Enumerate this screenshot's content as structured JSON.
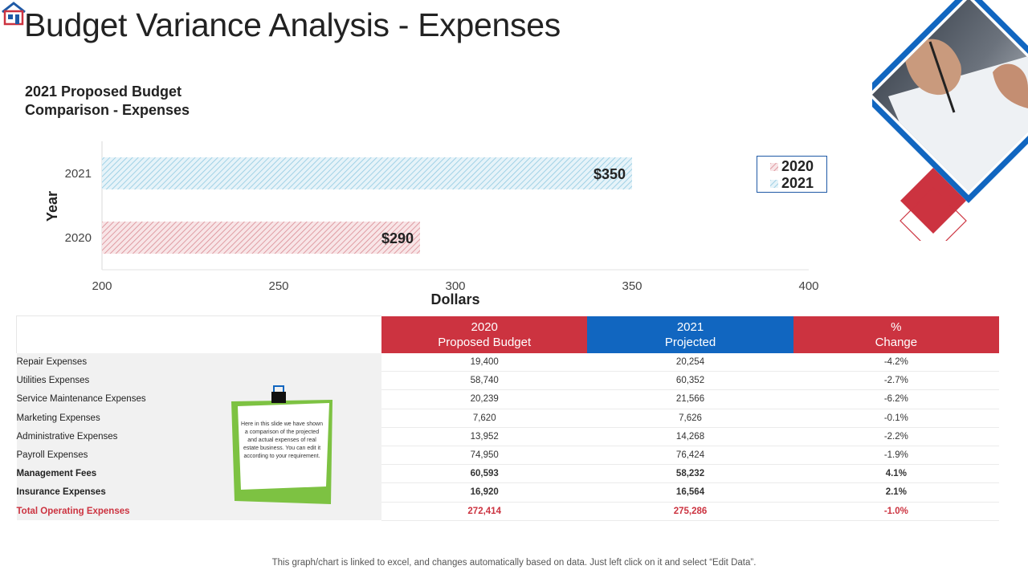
{
  "page": {
    "title": "Budget Variance Analysis - Expenses",
    "footer": "This graph/chart is linked to excel, and changes automatically based on data. Just left click on it and select “Edit Data”.",
    "note_text": "Here in this slide we have shown a comparison of the projected and actual expenses of real estate business. You can edit it according to your requirement.",
    "logo_icon": "house-logo-icon",
    "photo_icon": "hand-writing-photo"
  },
  "chart_data": {
    "type": "bar",
    "orientation": "horizontal",
    "title": "2021 Proposed Budget Comparison - Expenses",
    "title_lines": [
      "2021 Proposed Budget",
      "Comparison - Expenses"
    ],
    "xlabel": "Dollars",
    "ylabel": "Year",
    "categories": [
      "2021",
      "2020"
    ],
    "values": [
      350,
      290
    ],
    "data_labels": [
      "$350",
      "$290"
    ],
    "xlim": [
      200,
      400
    ],
    "xticks": [
      "200",
      "250",
      "300",
      "350",
      "400"
    ],
    "legend": [
      "2020",
      "2021"
    ],
    "legend_placement": "right",
    "series_colors": {
      "2020": "#cc3340",
      "2021": "#5fb4d6"
    },
    "pattern": "diagonal-hatch",
    "grid": false
  },
  "table": {
    "headers": [
      {
        "line1": "2020",
        "line2": "Proposed Budget"
      },
      {
        "line1": "2021",
        "line2": "Projected"
      },
      {
        "line1": "%",
        "line2": "Change"
      }
    ],
    "rows": [
      {
        "label": "Repair Expenses",
        "v2020": "19,400",
        "v2021": "20,254",
        "change": "-4.2%",
        "style": "normal"
      },
      {
        "label": "Utilities Expenses",
        "v2020": "58,740",
        "v2021": "60,352",
        "change": "-2.7%",
        "style": "normal"
      },
      {
        "label": "Service Maintenance Expenses",
        "v2020": "20,239",
        "v2021": "21,566",
        "change": "-6.2%",
        "style": "normal"
      },
      {
        "label": "Marketing Expenses",
        "v2020": "7,620",
        "v2021": "7,626",
        "change": "-0.1%",
        "style": "normal"
      },
      {
        "label": "Administrative Expenses",
        "v2020": "13,952",
        "v2021": "14,268",
        "change": "-2.2%",
        "style": "normal"
      },
      {
        "label": "Payroll Expenses",
        "v2020": "74,950",
        "v2021": "76,424",
        "change": "-1.9%",
        "style": "normal"
      },
      {
        "label": "Management Fees",
        "v2020": "60,593",
        "v2021": "58,232",
        "change": "4.1%",
        "style": "bold"
      },
      {
        "label": "Insurance Expenses",
        "v2020": "16,920",
        "v2021": "16,564",
        "change": "2.1%",
        "style": "bold"
      },
      {
        "label": "Total Operating Expenses",
        "v2020": "272,414",
        "v2021": "275,286",
        "change": "-1.0%",
        "style": "total"
      }
    ]
  },
  "colors": {
    "accent_red": "#cc3340",
    "accent_blue": "#1166c0",
    "note_green": "#7dc242"
  }
}
